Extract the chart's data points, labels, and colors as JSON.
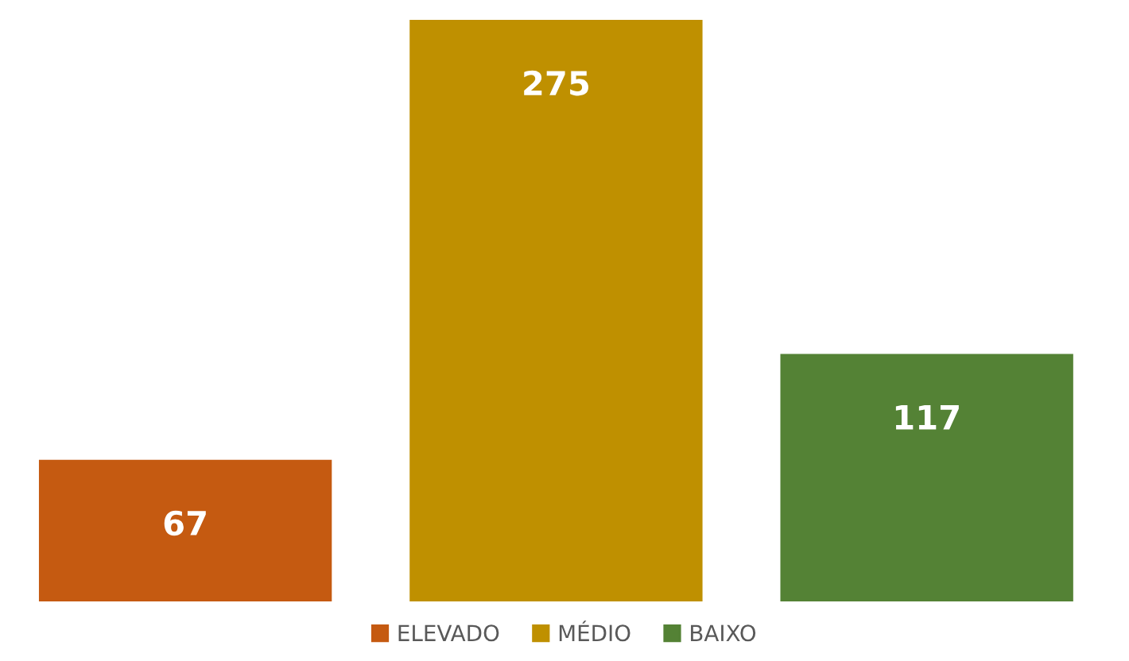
{
  "chart_data": {
    "type": "bar",
    "categories": [
      null
    ],
    "series": [
      {
        "name": "ELEVADO",
        "color": "#c55a11",
        "values": [
          67
        ]
      },
      {
        "name": "MÉDIO",
        "color": "#bf9000",
        "values": [
          275
        ]
      },
      {
        "name": "BAIXO",
        "color": "#548235",
        "values": [
          117
        ]
      }
    ],
    "data_labels": true,
    "legend": "bottom",
    "grid": false
  }
}
